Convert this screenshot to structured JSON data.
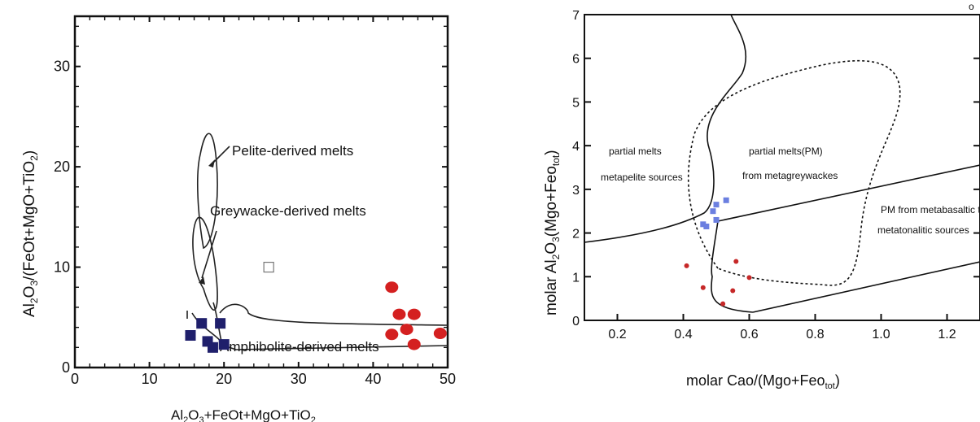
{
  "page_marker": "o",
  "chart_data": [
    {
      "type": "scatter",
      "xlabel": {
        "base": "Al",
        "sub1": "2",
        "mid": "O",
        "sub2": "3",
        "rest": "+FeOt+MgO+TiO",
        "sub3": "2"
      },
      "ylabel": {
        "base": "Al",
        "sub1": "2",
        "mid": "O",
        "sub2": "3",
        "rest": "/(FeOt+MgO+TiO",
        "sub3": "2",
        "close": ")"
      },
      "xlim": [
        0,
        50
      ],
      "ylim": [
        0,
        35
      ],
      "xticks": [
        "0",
        "10",
        "20",
        "30",
        "40",
        "50"
      ],
      "yticks": [
        "0",
        "10",
        "20",
        "30"
      ],
      "fields": [
        {
          "label": "Pelite-derived melts"
        },
        {
          "label": "Greywacke-derived melts"
        },
        {
          "label": "Amphibolite-derived melts"
        }
      ],
      "series": [
        {
          "marker": "square",
          "color": "#1f1f6b",
          "points": [
            [
              15.5,
              3.2
            ],
            [
              17.0,
              4.4
            ],
            [
              17.8,
              2.6
            ],
            [
              18.5,
              2.0
            ],
            [
              19.5,
              4.4
            ],
            [
              20.0,
              2.3
            ]
          ]
        },
        {
          "marker": "circle",
          "color": "#d42020",
          "points": [
            [
              42.5,
              8.0
            ],
            [
              43.5,
              5.3
            ],
            [
              45.5,
              5.3
            ],
            [
              44.5,
              3.8
            ],
            [
              42.5,
              3.3
            ],
            [
              45.5,
              2.3
            ],
            [
              49.0,
              3.4
            ]
          ]
        },
        {
          "marker": "open-square",
          "color": "#777777",
          "points": [
            [
              26.0,
              10.0
            ]
          ]
        }
      ]
    },
    {
      "type": "scatter",
      "xlabel": {
        "base": "molar Cao/(Mgo+Feo",
        "sub": "tot",
        "close": ")"
      },
      "ylabel": {
        "base": "molar Al",
        "sub1": "2",
        "mid": "O",
        "sub2": "3",
        "rest": "(Mgo+Feo",
        "sub3": "tot",
        "close": ")"
      },
      "xlim": [
        0.1,
        1.3
      ],
      "ylim": [
        0,
        7
      ],
      "xticks": [
        "0.2",
        "0.4",
        "0.6",
        "0.8",
        "1.0",
        "1.2"
      ],
      "yticks": [
        "0",
        "1",
        "2",
        "3",
        "4",
        "5",
        "6",
        "7"
      ],
      "fields": [
        {
          "line1": "partial melts",
          "line2": "metapelite sources"
        },
        {
          "line1": "partial melts(PM)",
          "line2": "from metagreywackes"
        },
        {
          "line1": "PM from metabasaltic to",
          "line2": "metatonalitic sources"
        }
      ],
      "series": [
        {
          "marker": "square",
          "color": "#6b7fe0",
          "points": [
            [
              0.46,
              2.2
            ],
            [
              0.47,
              2.15
            ],
            [
              0.5,
              2.65
            ],
            [
              0.5,
              2.3
            ],
            [
              0.53,
              2.75
            ],
            [
              0.49,
              2.5
            ]
          ]
        },
        {
          "marker": "circle",
          "color": "#c62828",
          "points": [
            [
              0.41,
              1.25
            ],
            [
              0.46,
              0.75
            ],
            [
              0.52,
              0.38
            ],
            [
              0.55,
              0.68
            ],
            [
              0.56,
              1.35
            ],
            [
              0.6,
              0.98
            ]
          ]
        }
      ]
    }
  ]
}
